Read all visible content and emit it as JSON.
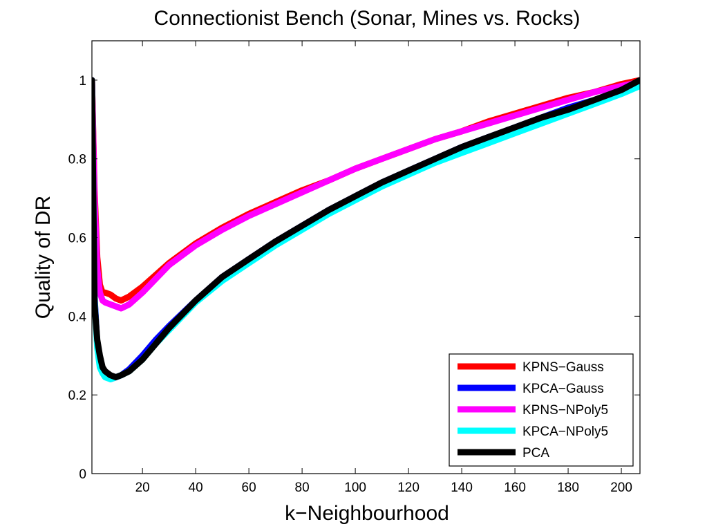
{
  "chart_data": {
    "type": "line",
    "title": "Connectionist Bench (Sonar, Mines vs. Rocks)",
    "xlabel": "k−Neighbourhood",
    "ylabel": "Quality of DR",
    "xlim": [
      1,
      207
    ],
    "ylim": [
      0,
      1.1
    ],
    "xticks": [
      20,
      40,
      60,
      80,
      100,
      120,
      140,
      160,
      180,
      200
    ],
    "yticks": [
      0,
      0.2,
      0.4,
      0.6,
      0.8,
      1
    ],
    "ytick_labels": [
      "0",
      "0.2",
      "0.4",
      "0.6",
      "0.8",
      "1"
    ],
    "grid": false,
    "legend_position": "bottom-right",
    "series": [
      {
        "name": "KPNS−Gauss",
        "color": "#ff0000",
        "x": [
          1,
          2,
          3,
          4,
          5,
          6,
          8,
          10,
          12,
          15,
          20,
          25,
          30,
          40,
          50,
          60,
          70,
          80,
          90,
          100,
          110,
          120,
          130,
          140,
          150,
          160,
          170,
          180,
          190,
          200,
          207
        ],
        "y": [
          1.0,
          0.72,
          0.55,
          0.48,
          0.46,
          0.46,
          0.455,
          0.445,
          0.44,
          0.45,
          0.475,
          0.505,
          0.535,
          0.585,
          0.625,
          0.66,
          0.69,
          0.72,
          0.745,
          0.775,
          0.8,
          0.825,
          0.85,
          0.87,
          0.895,
          0.915,
          0.935,
          0.955,
          0.97,
          0.99,
          1.0
        ]
      },
      {
        "name": "KPCA−Gauss",
        "color": "#0000ff",
        "x": [
          1,
          2,
          3,
          4,
          5,
          6,
          8,
          10,
          12,
          15,
          20,
          25,
          30,
          40,
          50,
          60,
          70,
          80,
          90,
          100,
          110,
          120,
          130,
          140,
          150,
          160,
          170,
          180,
          190,
          200,
          207
        ],
        "y": [
          1.0,
          0.45,
          0.33,
          0.28,
          0.26,
          0.25,
          0.24,
          0.245,
          0.25,
          0.265,
          0.3,
          0.34,
          0.375,
          0.44,
          0.5,
          0.545,
          0.59,
          0.63,
          0.67,
          0.705,
          0.74,
          0.77,
          0.8,
          0.83,
          0.855,
          0.88,
          0.905,
          0.93,
          0.95,
          0.975,
          0.99
        ]
      },
      {
        "name": "KPNS−NPoly5",
        "color": "#ff00ff",
        "x": [
          1,
          2,
          3,
          4,
          5,
          6,
          8,
          10,
          12,
          15,
          20,
          25,
          30,
          40,
          50,
          60,
          70,
          80,
          90,
          100,
          110,
          120,
          130,
          140,
          150,
          160,
          170,
          180,
          190,
          200,
          207
        ],
        "y": [
          1.0,
          0.7,
          0.52,
          0.46,
          0.44,
          0.435,
          0.43,
          0.425,
          0.42,
          0.43,
          0.46,
          0.495,
          0.53,
          0.58,
          0.62,
          0.655,
          0.685,
          0.715,
          0.745,
          0.775,
          0.8,
          0.825,
          0.85,
          0.87,
          0.89,
          0.91,
          0.93,
          0.95,
          0.97,
          0.985,
          0.995
        ]
      },
      {
        "name": "KPCA−NPoly5",
        "color": "#00ffff",
        "x": [
          1,
          2,
          3,
          4,
          5,
          6,
          8,
          10,
          12,
          15,
          20,
          25,
          30,
          40,
          50,
          60,
          70,
          80,
          90,
          100,
          110,
          120,
          130,
          140,
          150,
          160,
          170,
          180,
          190,
          200,
          207
        ],
        "y": [
          1.0,
          0.44,
          0.32,
          0.27,
          0.255,
          0.245,
          0.24,
          0.245,
          0.25,
          0.26,
          0.29,
          0.33,
          0.365,
          0.435,
          0.49,
          0.535,
          0.58,
          0.62,
          0.66,
          0.695,
          0.73,
          0.76,
          0.79,
          0.815,
          0.84,
          0.865,
          0.89,
          0.915,
          0.94,
          0.965,
          0.985
        ]
      },
      {
        "name": "PCA",
        "color": "#000000",
        "x": [
          1,
          2,
          3,
          4,
          5,
          6,
          8,
          10,
          12,
          15,
          20,
          25,
          30,
          40,
          50,
          60,
          70,
          80,
          90,
          100,
          110,
          120,
          130,
          140,
          150,
          160,
          170,
          180,
          190,
          200,
          207
        ],
        "y": [
          1.0,
          0.43,
          0.34,
          0.3,
          0.27,
          0.26,
          0.25,
          0.245,
          0.25,
          0.26,
          0.29,
          0.33,
          0.37,
          0.44,
          0.5,
          0.545,
          0.59,
          0.63,
          0.67,
          0.705,
          0.74,
          0.77,
          0.8,
          0.83,
          0.855,
          0.88,
          0.905,
          0.925,
          0.95,
          0.975,
          1.0
        ]
      }
    ]
  }
}
